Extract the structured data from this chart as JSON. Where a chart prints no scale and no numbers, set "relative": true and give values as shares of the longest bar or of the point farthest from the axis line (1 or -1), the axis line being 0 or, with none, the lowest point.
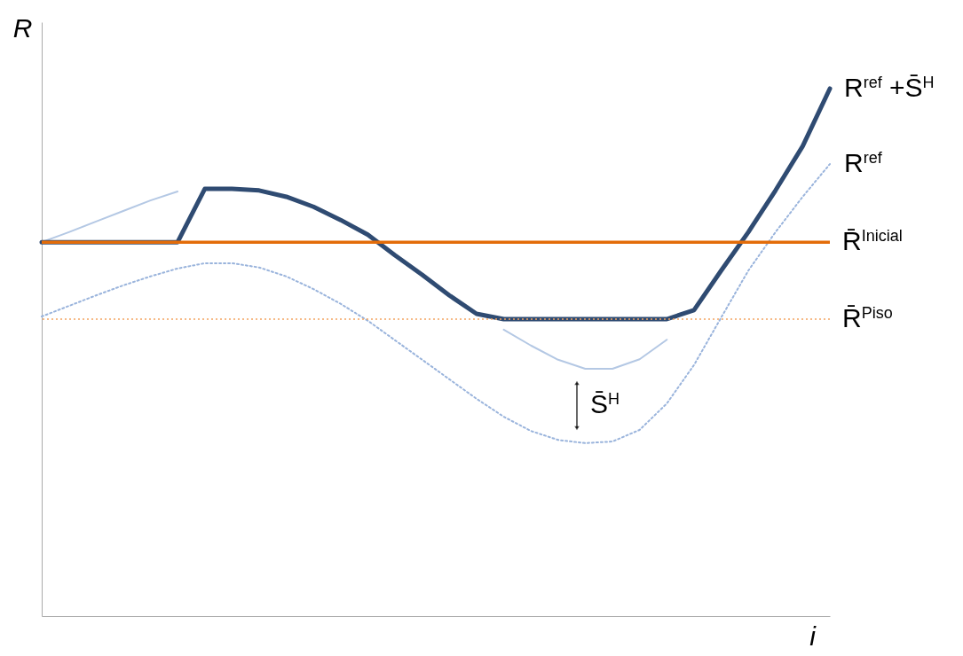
{
  "chart_data": {
    "type": "line",
    "relative": true,
    "xlabel": "i",
    "ylabel": "R",
    "categories": [
      null,
      null,
      null,
      null,
      null,
      null,
      null,
      null,
      null,
      null,
      null,
      null,
      null,
      null,
      null,
      null,
      null,
      null,
      null,
      null,
      null,
      null,
      null,
      null,
      null,
      null,
      null,
      null,
      null,
      null
    ],
    "series": [
      {
        "color": "#b4c8e4",
        "line_style": "solid",
        "values": [
          0.709,
          0.728,
          0.748,
          0.768,
          0.788,
          0.805,
          null,
          null,
          null,
          null,
          null,
          null,
          null,
          null,
          null,
          null,
          null,
          0.543,
          0.513,
          0.486,
          0.469,
          0.469,
          0.487,
          0.524,
          null,
          null,
          null,
          null,
          null,
          null
        ]
      },
      {
        "name": "R$^{ref}$",
        "color": "#9ab4dc",
        "line_style": "dotted",
        "values": [
          0.568,
          0.588,
          0.608,
          0.627,
          0.644,
          0.659,
          0.669,
          0.669,
          0.661,
          0.644,
          0.62,
          0.592,
          0.56,
          0.523,
          0.486,
          0.449,
          0.412,
          0.378,
          0.351,
          0.334,
          0.328,
          0.331,
          0.353,
          0.403,
          0.476,
          0.566,
          0.655,
          0.728,
          0.795,
          0.857
        ]
      },
      {
        "name": "R$^{ref}$ +S̄$^{H}$",
        "color": "#2f4b72",
        "line_style": "solid",
        "values": [
          0.709,
          0.709,
          0.709,
          0.709,
          0.709,
          0.709,
          0.81,
          0.81,
          0.807,
          0.795,
          0.776,
          0.751,
          0.723,
          0.684,
          0.647,
          0.608,
          0.573,
          0.563,
          0.563,
          0.563,
          0.563,
          0.563,
          0.563,
          0.563,
          0.58,
          0.655,
          0.728,
          0.807,
          0.891,
          1
        ]
      }
    ],
    "ref_lines": [
      {
        "axis": "y",
        "value": 0.709,
        "label": "R̄$^{Inicial}$",
        "color": "#e36c09",
        "line_style": "solid"
      },
      {
        "axis": "y",
        "value": 0.563,
        "label": "R̄$^{Piso}$",
        "color": "#f4a460",
        "line_style": "dotted"
      }
    ],
    "annotations": [
      "S̄$^{H}$"
    ]
  }
}
